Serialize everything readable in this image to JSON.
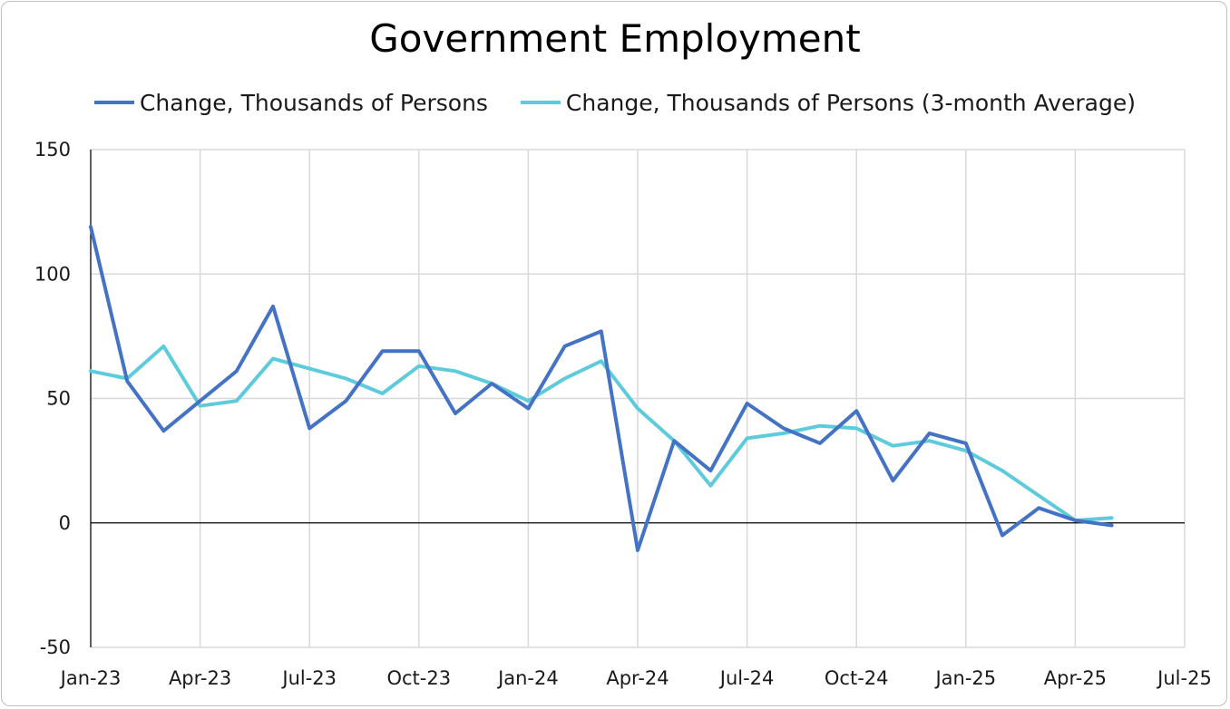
{
  "title": "Government Employment",
  "colors": {
    "series1": "#4472C4",
    "series2": "#5ECBDD",
    "grid": "#d9d9d9",
    "axis": "#000000"
  },
  "chart_data": {
    "type": "line",
    "title": "Government Employment",
    "x": [
      "2023-01",
      "2023-02",
      "2023-03",
      "2023-04",
      "2023-05",
      "2023-06",
      "2023-07",
      "2023-08",
      "2023-09",
      "2023-10",
      "2023-11",
      "2023-12",
      "2024-01",
      "2024-02",
      "2024-03",
      "2024-04",
      "2024-05",
      "2024-06",
      "2024-07",
      "2024-08",
      "2024-09",
      "2024-10",
      "2024-11",
      "2024-12",
      "2025-01",
      "2025-02",
      "2025-03",
      "2025-04",
      "2025-05"
    ],
    "series": [
      {
        "name": "Change, Thousands of Persons",
        "color": "#4472C4",
        "values": [
          119,
          57,
          37,
          49,
          61,
          87,
          38,
          49,
          69,
          69,
          44,
          56,
          46,
          71,
          77,
          -11,
          33,
          21,
          48,
          38,
          32,
          45,
          17,
          36,
          32,
          -5,
          6,
          1,
          -1
        ]
      },
      {
        "name": "Change, Thousands of Persons (3-month Average)",
        "color": "#5ECBDD",
        "values": [
          61,
          58,
          71,
          47,
          49,
          66,
          62,
          58,
          52,
          63,
          61,
          56,
          49,
          58,
          65,
          46,
          33,
          15,
          34,
          36,
          39,
          38,
          31,
          33,
          29,
          21,
          11,
          1,
          2
        ]
      }
    ],
    "x_tick_labels": [
      "Jan-23",
      "Apr-23",
      "Jul-23",
      "Oct-23",
      "Jan-24",
      "Apr-24",
      "Jul-24",
      "Oct-24",
      "Jan-25",
      "Apr-25",
      "Jul-25"
    ],
    "y_ticks": [
      "150",
      "100",
      "50",
      "0",
      "-50"
    ],
    "ylim": [
      -50,
      150
    ],
    "xlim": [
      "2023-01",
      "2025-07"
    ],
    "grid": true,
    "legend": "top"
  }
}
